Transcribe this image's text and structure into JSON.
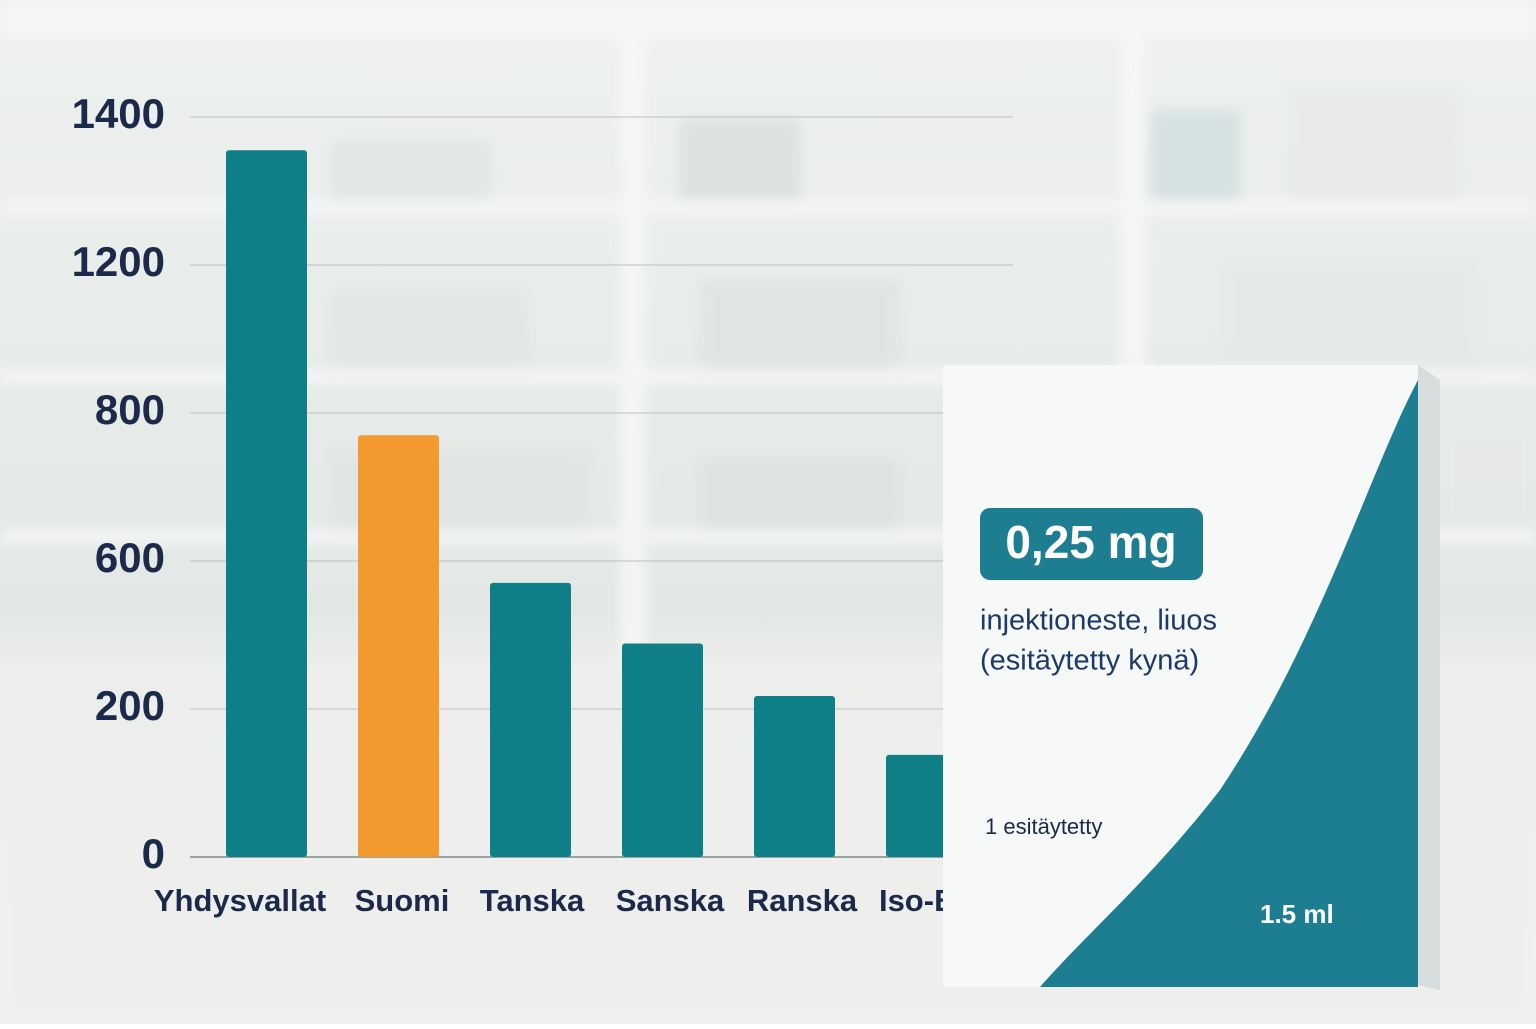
{
  "chart_data": {
    "type": "bar",
    "categories": [
      "Yhdysvallat",
      "Suomi",
      "Tanska",
      "Sanska",
      "Ranska",
      "Iso-Britta"
    ],
    "values": [
      1355,
      770,
      541,
      377,
      235,
      138
    ],
    "colors": [
      "#0e7f86",
      "#f39a2e",
      "#0e7f86",
      "#0e7f86",
      "#0e7f86",
      "#0e7f86"
    ],
    "yticks": [
      0,
      200,
      600,
      800,
      1200,
      1400
    ],
    "ylim": [
      0,
      1400
    ],
    "grid": true
  },
  "package": {
    "dose": "0,25 mg",
    "form_line1": "injektioneste, liuos",
    "form_line2": "(esitäytetty kynä)",
    "count": "1 esitäytetty",
    "volume": "1.5 ml"
  }
}
